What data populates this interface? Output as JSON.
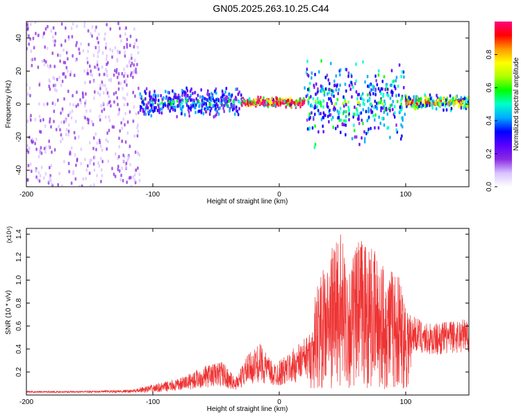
{
  "title": "GN05.2025.263.10.25.C44",
  "chart_data": [
    {
      "type": "heatmap",
      "xlabel": "Height of straight line (km)",
      "ylabel": "Frequency (Hz)",
      "xlim": [
        -200,
        150
      ],
      "ylim": [
        -50,
        50
      ],
      "x_ticks": [
        -200,
        -100,
        0,
        100
      ],
      "y_ticks": [
        -40,
        -20,
        0,
        20,
        40
      ],
      "grid": false,
      "colorbar": {
        "label": "Normalized spectral amplitude",
        "range": [
          0,
          1
        ],
        "ticks": [
          "0.0",
          "0.2",
          "0.4",
          "0.6",
          "0.8"
        ],
        "colors": [
          "#ffffff",
          "#d9c2ff",
          "#8a2be2",
          "#5a00ff",
          "#0000ff",
          "#00aaff",
          "#00ffcc",
          "#00ff00",
          "#b0ff00",
          "#ffff00",
          "#ff9900",
          "#ff0000",
          "#ff0080"
        ]
      },
      "regions": [
        {
          "x": [
            -200,
            -110
          ],
          "freq_spread": [
            -50,
            50
          ],
          "amplitude": 0.15
        },
        {
          "x": [
            -110,
            -30
          ],
          "freq_spread": [
            -8,
            8
          ],
          "amplitude": 0.35
        },
        {
          "x": [
            -30,
            20
          ],
          "freq_spread": [
            -2,
            3
          ],
          "amplitude": 0.9
        },
        {
          "x": [
            20,
            100
          ],
          "freq_spread": [
            -20,
            25
          ],
          "amplitude": 0.45
        },
        {
          "x": [
            100,
            150
          ],
          "freq_spread": [
            -4,
            4
          ],
          "amplitude": 0.6
        }
      ]
    },
    {
      "type": "line",
      "xlabel": "Height of straight line (km)",
      "ylabel": "SNR (10 * v/v)",
      "scale_label": "(x10⁴)",
      "xlim": [
        -200,
        150
      ],
      "ylim": [
        0,
        1.45
      ],
      "x_ticks": [
        -200,
        -100,
        0,
        100
      ],
      "y_ticks": [
        "0.2",
        "0.4",
        "0.6",
        "0.8",
        "1.0",
        "1.2",
        "1.4"
      ],
      "grid": false,
      "series": [
        {
          "color": "#ee3333",
          "envelope": [
            {
              "x": -200,
              "y": 0.03
            },
            {
              "x": -160,
              "y": 0.03
            },
            {
              "x": -120,
              "y": 0.05
            },
            {
              "x": -100,
              "y": 0.09
            },
            {
              "x": -80,
              "y": 0.14
            },
            {
              "x": -60,
              "y": 0.25
            },
            {
              "x": -45,
              "y": 0.3
            },
            {
              "x": -35,
              "y": 0.15
            },
            {
              "x": -25,
              "y": 0.35
            },
            {
              "x": -15,
              "y": 0.45
            },
            {
              "x": -5,
              "y": 0.28
            },
            {
              "x": 5,
              "y": 0.34
            },
            {
              "x": 15,
              "y": 0.45
            },
            {
              "x": 25,
              "y": 0.55
            },
            {
              "x": 30,
              "y": 0.95
            },
            {
              "x": 40,
              "y": 1.15
            },
            {
              "x": 46,
              "y": 1.45
            },
            {
              "x": 55,
              "y": 1.1
            },
            {
              "x": 65,
              "y": 1.35
            },
            {
              "x": 80,
              "y": 1.15
            },
            {
              "x": 95,
              "y": 1.0
            },
            {
              "x": 105,
              "y": 0.7
            },
            {
              "x": 120,
              "y": 0.62
            },
            {
              "x": 150,
              "y": 0.68
            }
          ]
        }
      ]
    }
  ]
}
